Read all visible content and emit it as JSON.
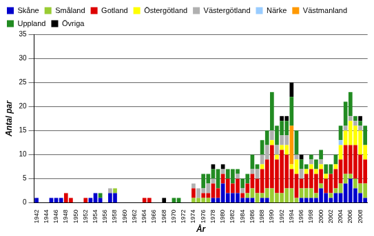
{
  "chart_data": {
    "type": "bar",
    "stacked": true,
    "grid": true,
    "legend": "upper left",
    "x_label": "År",
    "y_label": "Antal par",
    "ylim": [
      0,
      35
    ],
    "yticks": [
      0,
      5,
      10,
      15,
      20,
      25,
      30,
      35
    ],
    "categories": [
      "1942",
      null,
      "1944",
      null,
      "1946",
      null,
      "1948",
      null,
      "1950",
      null,
      "1952",
      null,
      "1954",
      null,
      "1956",
      null,
      "1958",
      null,
      "1960",
      null,
      "1962",
      null,
      "1964",
      null,
      "1966",
      null,
      "1968",
      null,
      "1970",
      null,
      "1972",
      null,
      "1974",
      null,
      "1976",
      null,
      "1978",
      null,
      "1980",
      null,
      "1982",
      null,
      "1984",
      null,
      "1986",
      null,
      "1988",
      null,
      "1990",
      null,
      "1992",
      null,
      "1994",
      null,
      "1996",
      null,
      "1998",
      null,
      "2000",
      null,
      "2002",
      null,
      "2004",
      null,
      "2006",
      null,
      "2008",
      null
    ],
    "series": [
      {
        "name": "Skåne",
        "color": "#0000cc",
        "values": [
          1,
          0,
          0,
          1,
          1,
          1,
          0,
          0,
          0,
          0,
          0,
          1,
          2,
          1,
          0,
          2,
          2,
          0,
          0,
          0,
          0,
          0,
          0,
          0,
          0,
          0,
          0,
          0,
          0,
          0,
          0,
          0,
          0,
          0,
          0,
          0,
          1,
          1,
          4,
          2,
          2,
          2,
          1,
          1,
          1,
          0,
          1,
          1,
          0,
          0,
          0,
          0,
          0,
          0,
          1,
          1,
          1,
          1,
          3,
          2,
          1,
          2,
          2,
          4,
          5,
          3,
          2,
          1
        ]
      },
      {
        "name": "Småland",
        "color": "#99cc33",
        "values": [
          0,
          0,
          0,
          0,
          0,
          0,
          0,
          0,
          0,
          0,
          0,
          0,
          0,
          0,
          0,
          0,
          1,
          0,
          0,
          0,
          0,
          0,
          0,
          0,
          0,
          0,
          0,
          0,
          0,
          0,
          0,
          0,
          1,
          1,
          1,
          1,
          0,
          0,
          0,
          0,
          0,
          0,
          0,
          1,
          2,
          2,
          1,
          2,
          3,
          2,
          2,
          3,
          3,
          1,
          2,
          2,
          2,
          1,
          1,
          0,
          1,
          1,
          2,
          2,
          1,
          2,
          2,
          3
        ]
      },
      {
        "name": "Gotland",
        "color": "#dd0000",
        "values": [
          0,
          0,
          0,
          0,
          0,
          0,
          2,
          1,
          0,
          0,
          1,
          0,
          0,
          0,
          0,
          0,
          0,
          0,
          0,
          0,
          0,
          0,
          1,
          1,
          0,
          0,
          0,
          0,
          0,
          0,
          0,
          0,
          2,
          0,
          1,
          1,
          3,
          2,
          2,
          3,
          2,
          3,
          1,
          2,
          3,
          3,
          5,
          6,
          9,
          7,
          9,
          7,
          4,
          5,
          2,
          3,
          4,
          4,
          3,
          3,
          4,
          4,
          5,
          6,
          6,
          7,
          6,
          5
        ]
      },
      {
        "name": "Östergötland",
        "color": "#ffff00",
        "values": [
          0,
          0,
          0,
          0,
          0,
          0,
          0,
          0,
          0,
          0,
          0,
          0,
          0,
          0,
          0,
          0,
          0,
          0,
          0,
          0,
          0,
          0,
          0,
          0,
          0,
          0,
          0,
          0,
          0,
          0,
          0,
          0,
          0,
          0,
          0,
          0,
          0,
          0,
          0,
          0,
          0,
          0,
          0,
          0,
          0,
          0,
          1,
          0,
          1,
          1,
          1,
          2,
          1,
          3,
          0,
          1,
          1,
          1,
          1,
          1,
          0,
          1,
          3,
          3,
          5,
          4,
          5,
          3
        ]
      },
      {
        "name": "Västergötland",
        "color": "#b0b0b0",
        "values": [
          0,
          0,
          0,
          0,
          0,
          0,
          0,
          0,
          0,
          0,
          0,
          0,
          0,
          0,
          0,
          1,
          0,
          0,
          0,
          0,
          0,
          0,
          0,
          0,
          0,
          0,
          0,
          0,
          0,
          0,
          0,
          0,
          1,
          2,
          1,
          2,
          1,
          0,
          1,
          0,
          0,
          1,
          1,
          0,
          1,
          2,
          2,
          3,
          2,
          2,
          2,
          2,
          0,
          1,
          2,
          0,
          1,
          0,
          1,
          0,
          0,
          0,
          0,
          1,
          1,
          1,
          1,
          0
        ]
      },
      {
        "name": "Närke",
        "color": "#99ccff",
        "values": [
          0,
          0,
          0,
          0,
          0,
          0,
          0,
          0,
          0,
          0,
          0,
          0,
          0,
          0,
          0,
          0,
          0,
          0,
          0,
          0,
          0,
          0,
          0,
          0,
          0,
          0,
          0,
          0,
          0,
          0,
          0,
          0,
          0,
          0,
          0,
          0,
          0,
          0,
          0,
          0,
          0,
          0,
          0,
          0,
          0,
          0,
          0,
          0,
          0,
          0,
          0,
          0,
          0,
          0,
          0,
          0,
          0,
          0,
          0,
          0,
          0,
          0,
          1,
          0,
          0,
          0,
          0,
          0
        ]
      },
      {
        "name": "Västmanland",
        "color": "#ff9900",
        "values": [
          0,
          0,
          0,
          0,
          0,
          0,
          0,
          0,
          0,
          0,
          0,
          0,
          0,
          0,
          0,
          0,
          0,
          0,
          0,
          0,
          0,
          0,
          0,
          0,
          0,
          0,
          0,
          0,
          0,
          0,
          0,
          0,
          0,
          0,
          0,
          0,
          0,
          0,
          0,
          0,
          0,
          0,
          0,
          0,
          0,
          0,
          0,
          0,
          0,
          0,
          0,
          0,
          8,
          0,
          0,
          0,
          0,
          0,
          0,
          0,
          0,
          0,
          0,
          0,
          0,
          0,
          0,
          0
        ]
      },
      {
        "name": "Uppland",
        "color": "#228b22",
        "values": [
          0,
          0,
          0,
          0,
          0,
          0,
          0,
          0,
          0,
          0,
          0,
          0,
          0,
          1,
          0,
          0,
          0,
          0,
          0,
          0,
          0,
          0,
          0,
          0,
          0,
          0,
          0,
          0,
          1,
          1,
          0,
          0,
          0,
          0,
          3,
          2,
          2,
          4,
          0,
          2,
          3,
          1,
          2,
          2,
          3,
          1,
          3,
          3,
          8,
          4,
          3,
          3,
          6,
          5,
          2,
          1,
          1,
          2,
          2,
          2,
          2,
          2,
          3,
          5,
          5,
          1,
          1,
          4
        ]
      },
      {
        "name": "Övriga",
        "color": "#000000",
        "values": [
          0,
          0,
          0,
          0,
          0,
          0,
          0,
          0,
          0,
          0,
          0,
          0,
          0,
          0,
          0,
          0,
          0,
          0,
          0,
          0,
          0,
          0,
          0,
          0,
          0,
          0,
          1,
          0,
          0,
          0,
          0,
          0,
          0,
          0,
          0,
          0,
          1,
          0,
          1,
          0,
          0,
          0,
          0,
          0,
          0,
          0,
          0,
          0,
          0,
          0,
          1,
          1,
          3,
          0,
          1,
          0,
          0,
          0,
          0,
          0,
          0,
          0,
          0,
          0,
          0,
          0,
          1,
          0
        ]
      }
    ]
  }
}
